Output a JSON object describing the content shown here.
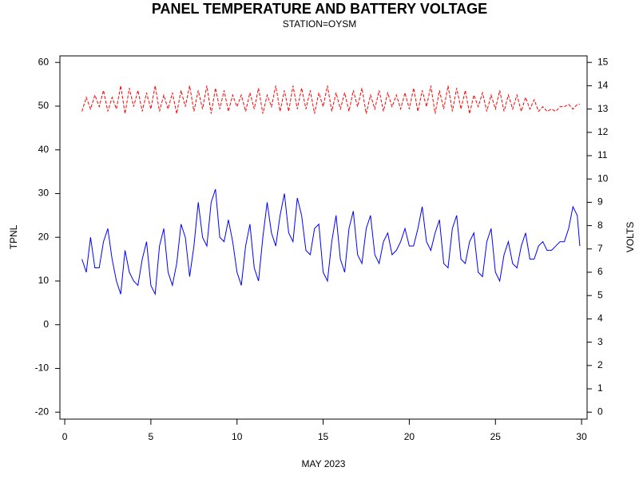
{
  "chart_data": {
    "type": "line",
    "title": "PANEL TEMPERATURE AND BATTERY VOLTAGE",
    "subtitle": "STATION=OYSM",
    "xlabel": "MAY 2023",
    "ylabel": "TPNL",
    "y2label": "VOLTS",
    "x": [
      1,
      1.25,
      1.5,
      1.75,
      2,
      2.25,
      2.5,
      2.75,
      3,
      3.25,
      3.5,
      3.75,
      4,
      4.25,
      4.5,
      4.75,
      5,
      5.25,
      5.5,
      5.75,
      6,
      6.25,
      6.5,
      6.75,
      7,
      7.25,
      7.5,
      7.75,
      8,
      8.25,
      8.5,
      8.75,
      9,
      9.25,
      9.5,
      9.75,
      10,
      10.25,
      10.5,
      10.75,
      11,
      11.25,
      11.5,
      11.75,
      12,
      12.25,
      12.5,
      12.75,
      13,
      13.25,
      13.5,
      13.75,
      14,
      14.25,
      14.5,
      14.75,
      15,
      15.25,
      15.5,
      15.75,
      16,
      16.25,
      16.5,
      16.75,
      17,
      17.25,
      17.5,
      17.75,
      18,
      18.25,
      18.5,
      18.75,
      19,
      19.25,
      19.5,
      19.75,
      20,
      20.25,
      20.5,
      20.75,
      21,
      21.25,
      21.5,
      21.75,
      22,
      22.25,
      22.5,
      22.75,
      23,
      23.25,
      23.5,
      23.75,
      24,
      24.25,
      24.5,
      24.75,
      25,
      25.25,
      25.5,
      25.75,
      26,
      26.25,
      26.5,
      26.75,
      27,
      27.25,
      27.5,
      27.75,
      28,
      28.25,
      28.5,
      28.75,
      29,
      29.25,
      29.5,
      29.75,
      29.9
    ],
    "series": [
      {
        "color": "#0000ff",
        "style": "solid",
        "axis": "y",
        "values": [
          15,
          12,
          20,
          13,
          13,
          19,
          22,
          15,
          10,
          7,
          17,
          12,
          10,
          9,
          15,
          19,
          9,
          7,
          18,
          22,
          12,
          9,
          14,
          23,
          20,
          11,
          18,
          28,
          20,
          18,
          28,
          31,
          20,
          19,
          24,
          19,
          12,
          9,
          18,
          23,
          13,
          10,
          20,
          28,
          21,
          18,
          25,
          30,
          21,
          19,
          29,
          25,
          17,
          16,
          22,
          23,
          12,
          10,
          19,
          25,
          15,
          12,
          22,
          26,
          16,
          14,
          22,
          25,
          16,
          14,
          19,
          21,
          16,
          17,
          19,
          22,
          18,
          18,
          22,
          27,
          19,
          17,
          21,
          24,
          14,
          13,
          22,
          25,
          15,
          14,
          19,
          21,
          12,
          11,
          19,
          22,
          12,
          10,
          16,
          19,
          14,
          13,
          18,
          21,
          15,
          15,
          18,
          19,
          17,
          17,
          18,
          19,
          19,
          22,
          27,
          25,
          18
        ]
      },
      {
        "color": "#ff0000",
        "style": "dashed",
        "axis": "y2",
        "values": [
          12.9,
          13.5,
          13.0,
          13.6,
          13.1,
          13.8,
          12.9,
          13.5,
          13.0,
          14.0,
          12.8,
          13.9,
          13.1,
          13.8,
          12.9,
          13.7,
          13.0,
          14.0,
          12.9,
          13.6,
          13.0,
          13.7,
          12.8,
          13.8,
          13.1,
          14.0,
          12.9,
          13.8,
          13.0,
          14.0,
          12.8,
          13.9,
          13.0,
          13.8,
          12.9,
          13.6,
          13.1,
          13.6,
          12.9,
          13.7,
          13.0,
          13.9,
          12.8,
          13.6,
          13.1,
          14.0,
          12.9,
          13.8,
          12.9,
          14.0,
          13.0,
          13.9,
          13.0,
          13.8,
          12.8,
          13.7,
          13.1,
          14.0,
          12.9,
          13.7,
          13.0,
          13.7,
          12.9,
          13.8,
          13.1,
          13.9,
          12.8,
          13.6,
          13.0,
          13.8,
          12.9,
          13.7,
          13.1,
          13.6,
          13.0,
          13.7,
          13.0,
          13.9,
          12.9,
          13.8,
          13.1,
          14.0,
          12.8,
          13.8,
          13.0,
          14.0,
          12.9,
          13.9,
          13.0,
          13.8,
          12.8,
          13.6,
          13.1,
          13.7,
          12.9,
          13.6,
          13.0,
          13.8,
          12.9,
          13.6,
          13.0,
          13.6,
          12.9,
          13.5,
          13.0,
          13.4,
          12.9,
          13.1,
          12.9,
          13.0,
          12.9,
          13.1,
          13.1,
          13.2,
          13.0,
          13.2,
          13.2
        ]
      }
    ],
    "xlim": [
      -0.28,
      30.32
    ],
    "xticks": [
      0,
      5,
      10,
      15,
      20,
      25,
      30
    ],
    "ylim": [
      -21.6,
      61.5
    ],
    "yticks": [
      -20,
      -10,
      0,
      10,
      20,
      30,
      40,
      50,
      60
    ],
    "y2lim": [
      -0.3,
      15.28
    ],
    "y2ticks": [
      0,
      1,
      2,
      3,
      4,
      5,
      6,
      7,
      8,
      9,
      10,
      11,
      12,
      13,
      14,
      15
    ],
    "grid": false
  }
}
